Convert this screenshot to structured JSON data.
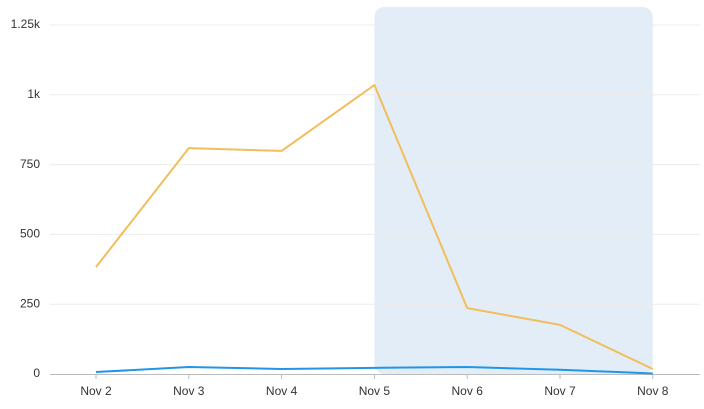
{
  "chart_data": {
    "type": "line",
    "categories": [
      "Nov 2",
      "Nov 3",
      "Nov 4",
      "Nov 5",
      "Nov 6",
      "Nov 7",
      "Nov 8"
    ],
    "series": [
      {
        "color": "#f2be5c",
        "values": [
          383,
          809,
          799,
          1035,
          236,
          176,
          18
        ]
      },
      {
        "color": "#2196e8",
        "values": [
          7,
          25,
          18,
          22,
          25,
          15,
          2
        ]
      }
    ],
    "ylim": [
      0,
      1250
    ],
    "yticks": [
      0,
      250,
      500,
      750,
      {
        "value": 1000,
        "label": "1k"
      },
      {
        "value": 1250,
        "label": "1.25k"
      }
    ],
    "grid": true,
    "highlight": {
      "from": "Nov 5",
      "to": "Nov 8",
      "color": "#e3edf8"
    }
  }
}
